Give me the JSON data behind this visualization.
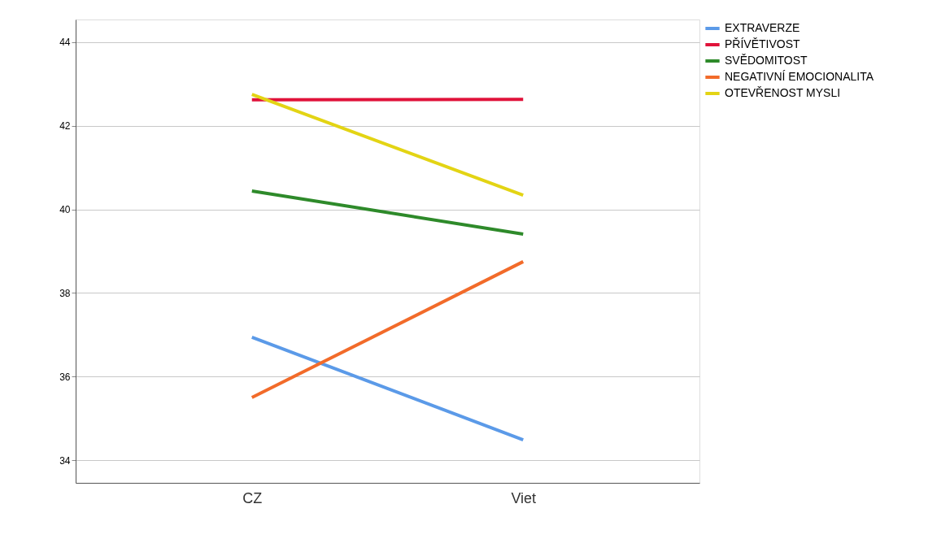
{
  "chart_data": {
    "type": "line",
    "categories": [
      "CZ",
      "Viet"
    ],
    "series": [
      {
        "name": "EXTRAVERZE",
        "color": "#5b9ae8",
        "values": [
          36.94,
          34.49
        ]
      },
      {
        "name": "PŘÍVĚTIVOST",
        "color": "#e0123a",
        "values": [
          42.62,
          42.63
        ]
      },
      {
        "name": "SVĚDOMITOST",
        "color": "#2e8a2a",
        "values": [
          40.44,
          39.41
        ]
      },
      {
        "name": "NEGATIVNÍ EMOCIONALITA",
        "color": "#f26b2a",
        "values": [
          35.5,
          38.75
        ]
      },
      {
        "name": "OTEVŘENOST MYSLI",
        "color": "#e3d414",
        "values": [
          42.75,
          40.34
        ]
      }
    ],
    "ylim": [
      33.46,
      44.54
    ],
    "yticks": [
      34,
      36,
      38,
      40,
      42,
      44
    ],
    "grid": "y",
    "legend": "top right",
    "marker": "none",
    "line_style": "solid"
  }
}
